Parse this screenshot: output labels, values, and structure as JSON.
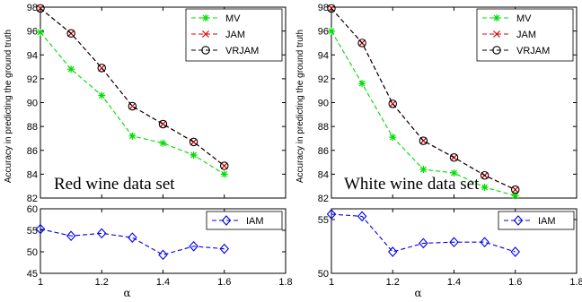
{
  "chart_data": [
    {
      "type": "line",
      "panel": "top-left",
      "ylabel": "Accuracy in predicting the ground truth",
      "annotation": "Red wine data set",
      "x": [
        1.0,
        1.1,
        1.2,
        1.3,
        1.4,
        1.5,
        1.6
      ],
      "xlim": [
        1.0,
        1.8
      ],
      "ylim": [
        82,
        98
      ],
      "yticks": [
        82,
        84,
        86,
        88,
        90,
        92,
        94,
        96,
        98
      ],
      "legend_position": "top-right",
      "series": [
        {
          "name": "MV",
          "color": "#00dd00",
          "marker": "star",
          "values": [
            95.9,
            92.8,
            90.6,
            87.2,
            86.6,
            85.6,
            84.0
          ]
        },
        {
          "name": "JAM",
          "color": "#dd0000",
          "marker": "x",
          "values": [
            97.9,
            95.8,
            92.9,
            89.7,
            88.2,
            86.7,
            84.7
          ]
        },
        {
          "name": "VRJAM",
          "color": "#000000",
          "marker": "circle",
          "values": [
            97.9,
            95.8,
            92.9,
            89.7,
            88.2,
            86.7,
            84.7
          ]
        }
      ]
    },
    {
      "type": "line",
      "panel": "bottom-left",
      "xlabel": "α",
      "x": [
        1.0,
        1.1,
        1.2,
        1.3,
        1.4,
        1.5,
        1.6
      ],
      "xlim": [
        1.0,
        1.8
      ],
      "xticks": [
        "1",
        "1.2",
        "1.4",
        "1.6",
        "1.8"
      ],
      "ylim": [
        45,
        60
      ],
      "yticks": [
        45,
        50,
        55,
        60
      ],
      "legend_position": "top-right",
      "series": [
        {
          "name": "IAM",
          "color": "#0000ee",
          "marker": "diamond",
          "values": [
            55.3,
            53.7,
            54.3,
            53.3,
            49.3,
            51.3,
            50.7
          ]
        }
      ]
    },
    {
      "type": "line",
      "panel": "top-right",
      "ylabel": "Accuracy in predicting the ground truth",
      "annotation": "White wine data set",
      "x": [
        1.0,
        1.1,
        1.2,
        1.3,
        1.4,
        1.5,
        1.6
      ],
      "xlim": [
        1.0,
        1.8
      ],
      "ylim": [
        82,
        98
      ],
      "yticks": [
        82,
        84,
        86,
        88,
        90,
        92,
        94,
        96,
        98
      ],
      "legend_position": "top-right",
      "series": [
        {
          "name": "MV",
          "color": "#00dd00",
          "marker": "star",
          "values": [
            96.0,
            91.6,
            87.1,
            84.4,
            84.1,
            82.9,
            82.2
          ]
        },
        {
          "name": "JAM",
          "color": "#dd0000",
          "marker": "x",
          "values": [
            97.9,
            95.0,
            89.9,
            86.8,
            85.4,
            83.9,
            82.7
          ]
        },
        {
          "name": "VRJAM",
          "color": "#000000",
          "marker": "circle",
          "values": [
            97.9,
            95.0,
            89.9,
            86.8,
            85.4,
            83.9,
            82.7
          ]
        }
      ]
    },
    {
      "type": "line",
      "panel": "bottom-right",
      "xlabel": "α",
      "x": [
        1.0,
        1.1,
        1.2,
        1.3,
        1.4,
        1.5,
        1.6
      ],
      "xlim": [
        1.0,
        1.8
      ],
      "xticks": [
        "1",
        "1.2",
        "1.4",
        "1.6",
        "1.8"
      ],
      "ylim": [
        50,
        56
      ],
      "yticks": [
        50,
        55
      ],
      "legend_position": "top-right",
      "series": [
        {
          "name": "IAM",
          "color": "#0000ee",
          "marker": "diamond",
          "values": [
            55.5,
            55.3,
            52.0,
            52.8,
            52.9,
            52.9,
            52.0
          ]
        }
      ]
    }
  ]
}
